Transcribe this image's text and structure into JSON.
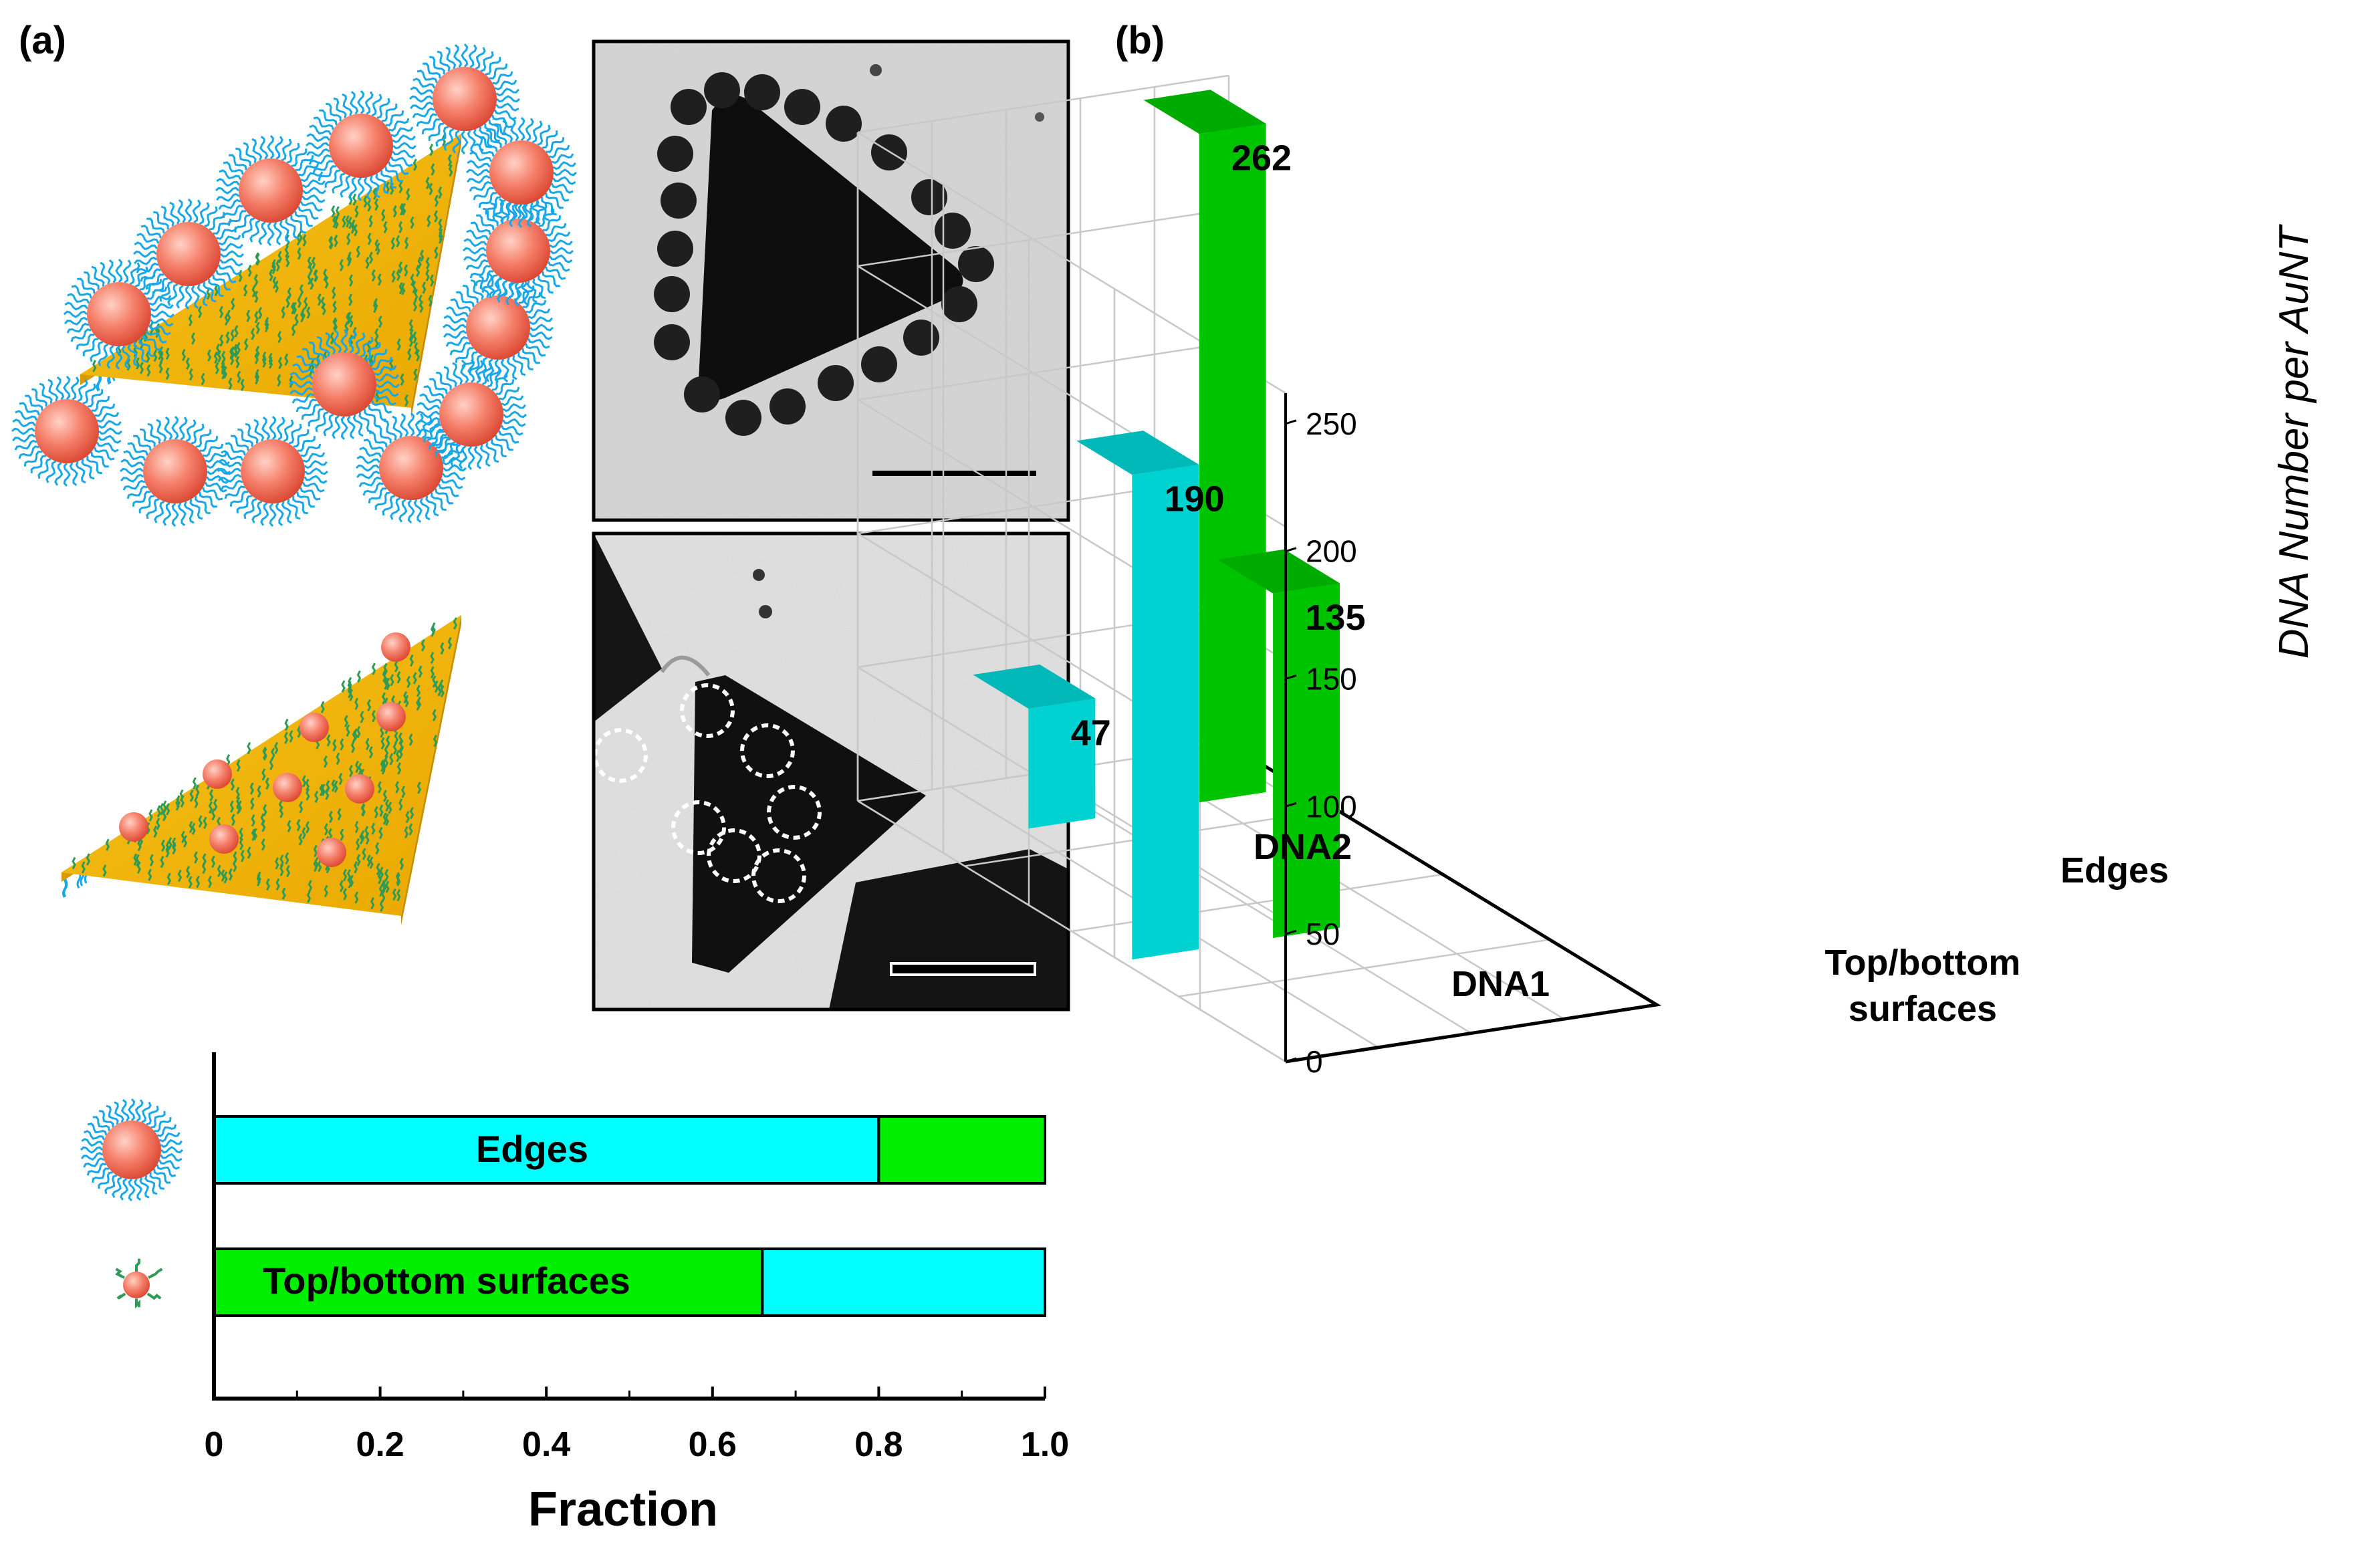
{
  "panel_labels": {
    "a": "(a)",
    "b": "(b)"
  },
  "colors": {
    "edges": "#00FFFF",
    "surfaces": "#00EE00",
    "gold_particle": "#F26B5A",
    "prism": "#F2B800",
    "dna_blue": "#1AA7E8",
    "dna_green": "#2E9B57"
  },
  "icons": {
    "large_particle": "large-dna-gold-particle-icon",
    "small_particle": "small-dna-gold-particle-icon"
  },
  "chart_data": [
    {
      "type": "bar",
      "orientation": "horizontal-stacked",
      "categories": [
        "large DNA-AuNP",
        "small DNA-AuNP"
      ],
      "series": [
        {
          "name": "Edges",
          "values": [
            0.8,
            0.34
          ],
          "color": "#00FFFF"
        },
        {
          "name": "Top/bottom surfaces",
          "values": [
            0.2,
            0.66
          ],
          "color": "#00EE00"
        }
      ],
      "segment_order": [
        [
          "Edges",
          "Top/bottom surfaces"
        ],
        [
          "Top/bottom surfaces",
          "Edges"
        ]
      ],
      "segment_labels": {
        "row0": "Edges",
        "row1": "Top/bottom surfaces"
      },
      "xlabel": "Fraction",
      "xlim": [
        0,
        1.0
      ],
      "xticks": [
        "0",
        "0.2",
        "0.4",
        "0.6",
        "0.8",
        "1.0"
      ]
    },
    {
      "type": "bar",
      "orientation": "3d",
      "zlabel": "DNA Number per AuNT",
      "zlim": [
        0,
        262
      ],
      "zticks": [
        "0",
        "50",
        "100",
        "150",
        "200",
        "250"
      ],
      "rows": [
        "DNA2",
        "DNA1"
      ],
      "columns": [
        "Top/bottom surfaces",
        "Edges"
      ],
      "column_label_lines": [
        [
          "Top/bottom",
          "surfaces"
        ],
        [
          "Edges"
        ]
      ],
      "bars": [
        {
          "row": "DNA2",
          "column": "Top/bottom surfaces",
          "value": 262,
          "label": "262",
          "color": "#00EE00"
        },
        {
          "row": "DNA2",
          "column": "Edges",
          "value": 135,
          "label": "135",
          "color": "#00EE00"
        },
        {
          "row": "DNA1",
          "column": "Top/bottom surfaces",
          "value": 47,
          "label": "47",
          "color": "#00FFFF"
        },
        {
          "row": "DNA1",
          "column": "Edges",
          "value": 190,
          "label": "190",
          "color": "#00FFFF"
        }
      ]
    }
  ]
}
